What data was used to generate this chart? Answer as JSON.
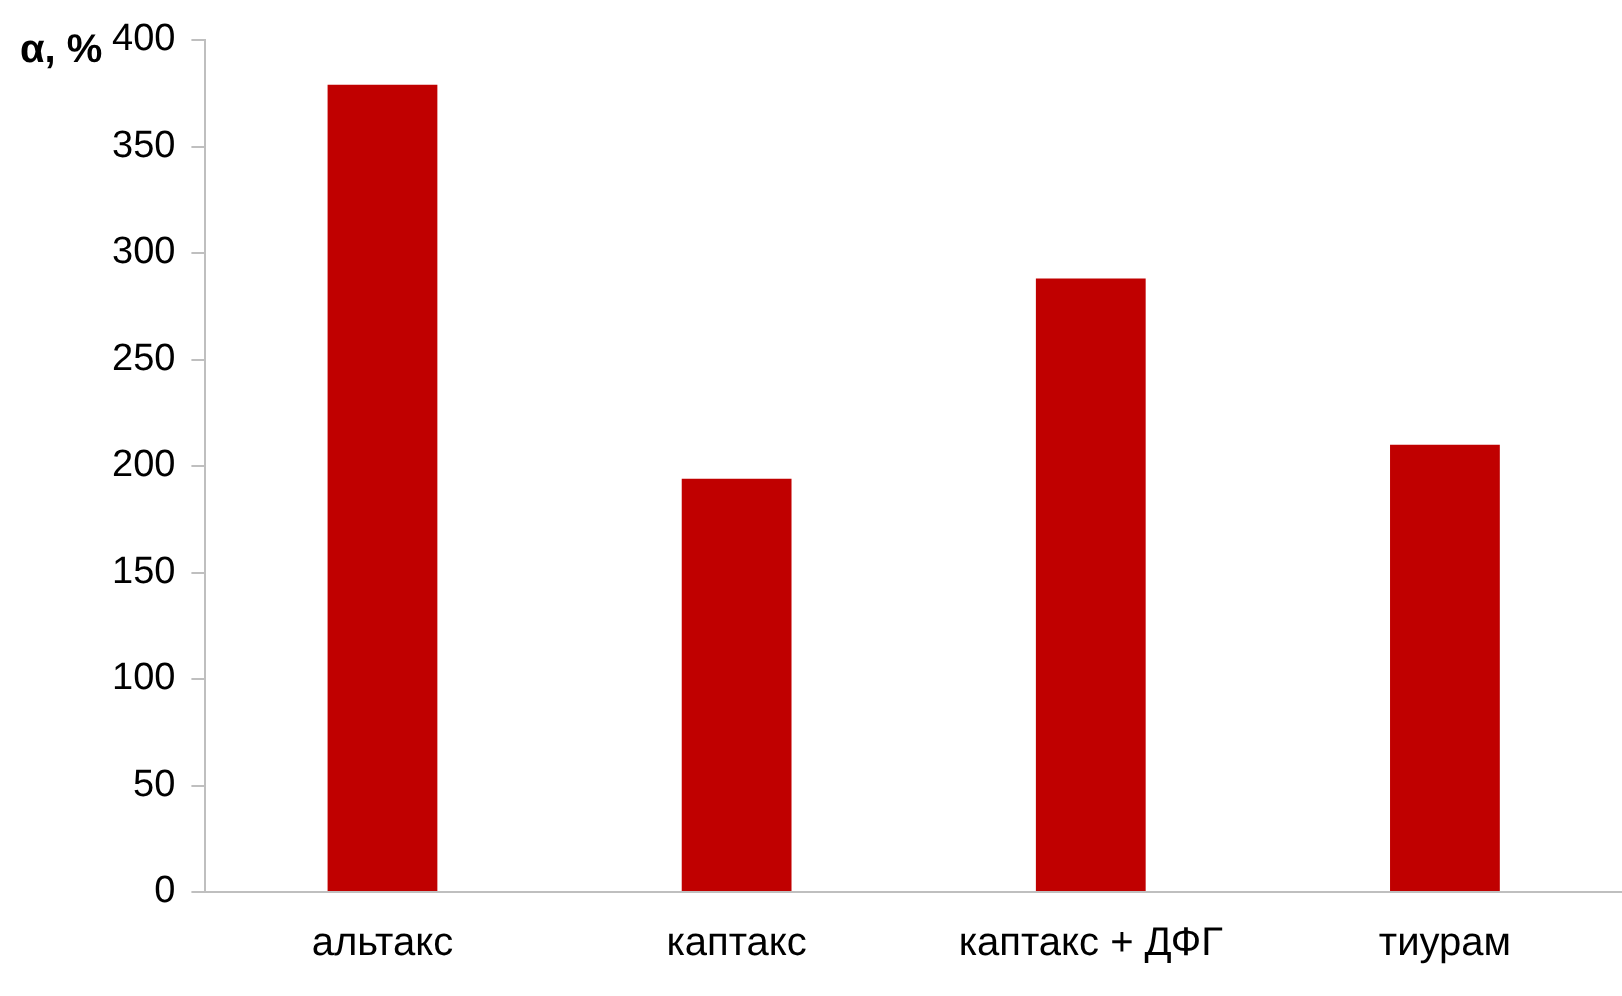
{
  "chart_data": {
    "type": "bar",
    "ylabel": "α, %",
    "categories": [
      "альтакс",
      "каптакс",
      "каптакс + ДФГ",
      "тиурам"
    ],
    "values": [
      379,
      194,
      288,
      210
    ],
    "color": "#c00000",
    "ylim": [
      0,
      400
    ],
    "yticks": [
      0,
      50,
      100,
      150,
      200,
      250,
      300,
      350,
      400
    ],
    "grid": false,
    "legend": false
  }
}
